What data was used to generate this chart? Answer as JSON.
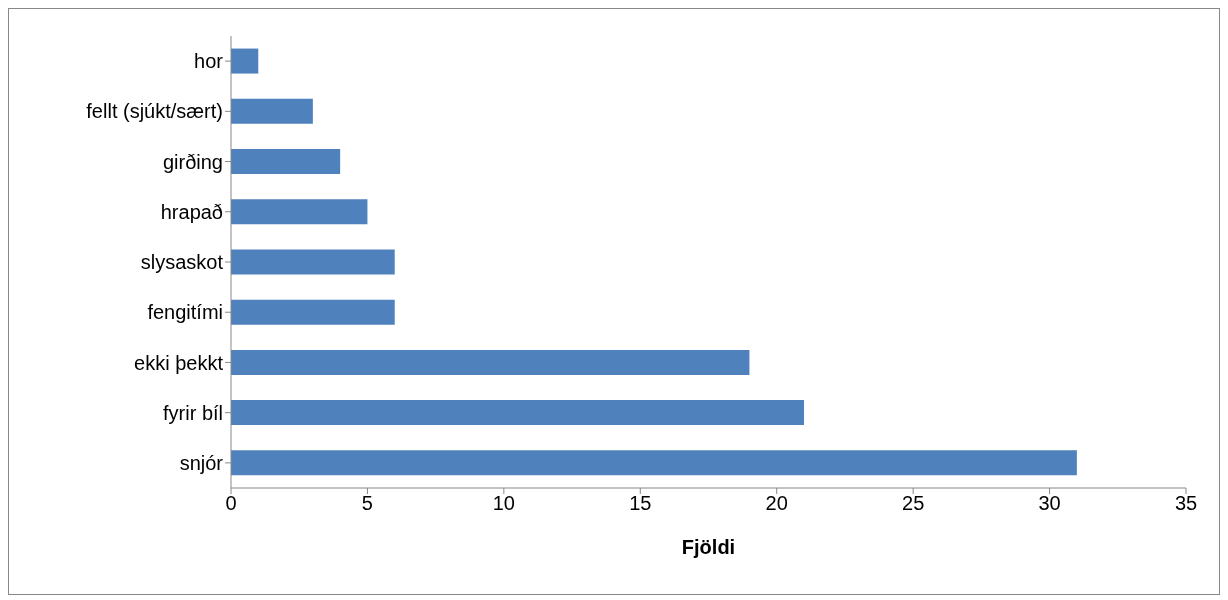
{
  "chart_data": {
    "type": "bar",
    "orientation": "horizontal",
    "xlabel": "Fjöldi",
    "categories": [
      "hor",
      "fellt (sjúkt/sært)",
      "girðing",
      "hrapað",
      "slysaskot",
      "fengitími",
      "ekki þekkt",
      "fyrir bíl",
      "snjór"
    ],
    "values": [
      1,
      3,
      4,
      5,
      6,
      6,
      19,
      21,
      31
    ],
    "color": "#4f81bd",
    "xlim": [
      0,
      35
    ],
    "xticks": [
      0,
      5,
      10,
      15,
      20,
      25,
      30,
      35
    ],
    "grid": false,
    "legend": false
  }
}
